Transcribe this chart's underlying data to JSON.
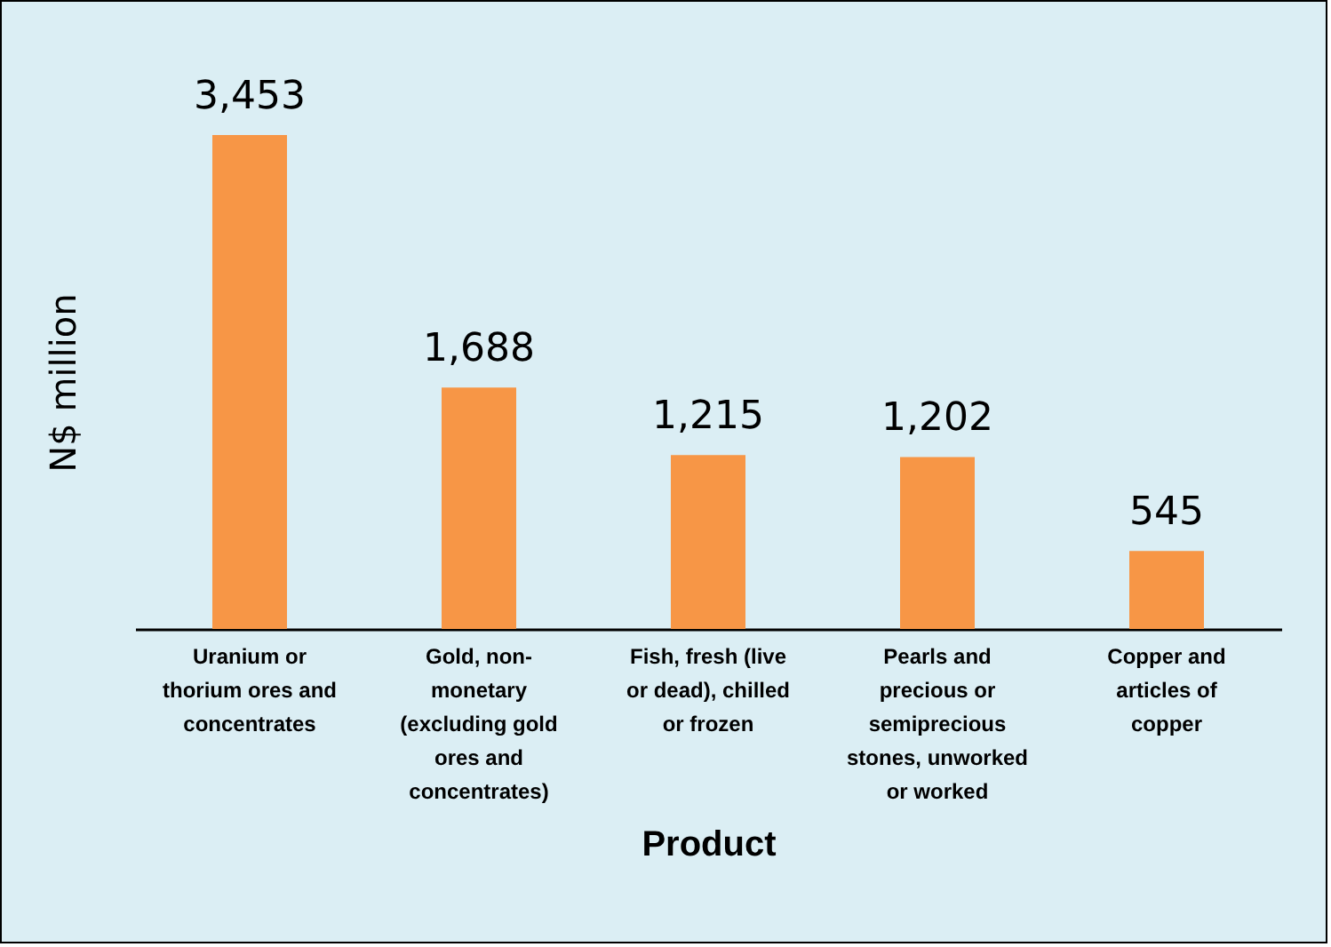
{
  "chart_data": {
    "type": "bar",
    "xlabel": "Product",
    "ylabel": "N$ million",
    "categories": [
      "Uranium or thorium ores and concentrates",
      "Gold, non-monetary (excluding gold ores and concentrates)",
      "Fish, fresh (live or dead), chilled or frozen",
      "Pearls and precious or semiprecious stones, unworked or worked",
      "Copper and articles of copper"
    ],
    "values": [
      3453,
      1688,
      1215,
      1202,
      545
    ],
    "value_labels": [
      "3,453",
      "1,688",
      "1,215",
      "1,202",
      "545"
    ],
    "color": "#f79646",
    "grid": false
  }
}
